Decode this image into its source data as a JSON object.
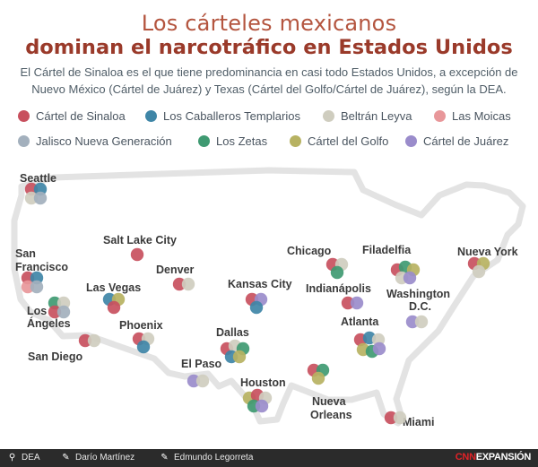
{
  "title_line1": "Los cárteles mexicanos",
  "title_line2": "dominan el narcotráfico en Estados Unidos",
  "subtitle": "El Cártel de Sinaloa es el que tiene predominancia en casi todo Estados Unidos, a excepción de Nuevo México (Cártel de Juárez) y Texas (Cártel del Golfo/Cártel de Juárez), según la DEA.",
  "legend": [
    {
      "label": "Cártel de Sinaloa",
      "color": "#c8505e"
    },
    {
      "label": "Los Caballeros Templarios",
      "color": "#3f86a7"
    },
    {
      "label": "Beltrán Leyva",
      "color": "#cfcdbf"
    },
    {
      "label": "Las Moicas",
      "color": "#e8979a"
    },
    {
      "label": "Jalisco Nueva Generación",
      "color": "#a3b0bd"
    },
    {
      "label": "Los Zetas",
      "color": "#3f9a72"
    },
    {
      "label": "Cártel del Golfo",
      "color": "#b7b262"
    },
    {
      "label": "Cártel de Juárez",
      "color": "#9a8ccb"
    }
  ],
  "cities": [
    {
      "name": "Seattle",
      "cartels": [
        "Cártel de Sinaloa",
        "Los Caballeros Templarios",
        "Beltrán Leyva",
        "Jalisco Nueva Generación"
      ]
    },
    {
      "name": "San Francisco",
      "cartels": [
        "Cártel de Sinaloa",
        "Los Caballeros Templarios",
        "Las Moicas",
        "Jalisco Nueva Generación"
      ]
    },
    {
      "name": "Salt Lake City",
      "cartels": [
        "Cártel de Sinaloa"
      ]
    },
    {
      "name": "Denver",
      "cartels": [
        "Cártel de Sinaloa",
        "Beltrán Leyva"
      ]
    },
    {
      "name": "Las Vegas",
      "cartels": [
        "Los Caballeros Templarios",
        "Cártel del Golfo",
        "Cártel de Sinaloa"
      ]
    },
    {
      "name": "Los Ángeles",
      "cartels": [
        "Los Zetas",
        "Beltrán Leyva",
        "Cártel de Sinaloa",
        "Jalisco Nueva Generación"
      ]
    },
    {
      "name": "San Diego",
      "cartels": [
        "Cártel de Sinaloa",
        "Beltrán Leyva"
      ]
    },
    {
      "name": "Phoenix",
      "cartels": [
        "Cártel de Sinaloa",
        "Beltrán Leyva",
        "Los Caballeros Templarios"
      ]
    },
    {
      "name": "Kansas City",
      "cartels": [
        "Cártel de Sinaloa",
        "Cártel de Juárez",
        "Los Caballeros Templarios"
      ]
    },
    {
      "name": "Dallas",
      "cartels": [
        "Cártel de Sinaloa",
        "Beltrán Leyva",
        "Los Zetas",
        "Los Caballeros Templarios",
        "Cártel del Golfo"
      ]
    },
    {
      "name": "El Paso",
      "cartels": [
        "Cártel de Juárez",
        "Beltrán Leyva"
      ]
    },
    {
      "name": "Houston",
      "cartels": [
        "Cártel del Golfo",
        "Cártel de Sinaloa",
        "Beltrán Leyva",
        "Los Zetas",
        "Cártel de Juárez"
      ]
    },
    {
      "name": "Chicago",
      "cartels": [
        "Cártel de Sinaloa",
        "Beltrán Leyva",
        "Los Zetas"
      ]
    },
    {
      "name": "Indianápolis",
      "cartels": [
        "Cártel de Sinaloa",
        "Cártel de Juárez"
      ]
    },
    {
      "name": "Filadelfia",
      "cartels": [
        "Cártel de Sinaloa",
        "Los Zetas",
        "Cártel del Golfo",
        "Beltrán Leyva",
        "Cártel de Juárez"
      ]
    },
    {
      "name": "Nueva York",
      "cartels": [
        "Cártel de Sinaloa",
        "Cártel del Golfo",
        "Beltrán Leyva"
      ]
    },
    {
      "name": "Washington D.C.",
      "cartels": [
        "Cártel de Juárez",
        "Beltrán Leyva"
      ]
    },
    {
      "name": "Atlanta",
      "cartels": [
        "Cártel de Sinaloa",
        "Los Caballeros Templarios",
        "Beltrán Leyva",
        "Cártel del Golfo",
        "Los Zetas",
        "Cártel de Juárez"
      ]
    },
    {
      "name": "Nueva Orleans",
      "cartels": [
        "Cártel de Sinaloa",
        "Los Zetas",
        "Cártel del Golfo"
      ]
    },
    {
      "name": "Miami",
      "cartels": [
        "Cártel de Sinaloa",
        "Beltrán Leyva"
      ]
    }
  ],
  "footer": {
    "source": "DEA",
    "author1": "Darío Martínez",
    "author2": "Edmundo Legorreta",
    "brand_red": "CNN",
    "brand_white": "EXPANSIÓN"
  }
}
